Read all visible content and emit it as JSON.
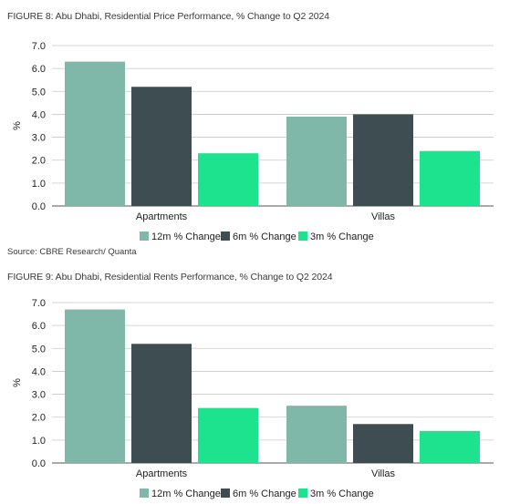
{
  "figures": [
    {
      "title": "FIGURE 8: Abu Dhabi, Residential Price Performance, % Change to Q2 2024",
      "source": "Source: CBRE Research/ Quanta"
    },
    {
      "title": "FIGURE 9: Abu Dhabi, Residential Rents Performance, % Change to Q2 2024",
      "source": ""
    }
  ],
  "colors": {
    "12m": "#7fb8a8",
    "6m": "#3e4d51",
    "3m": "#1de38f",
    "grid": "#c8c8c8",
    "axis": "#555555"
  },
  "chart_data": [
    {
      "type": "bar",
      "title": "FIGURE 8: Abu Dhabi, Residential Price Performance, % Change to Q2 2024",
      "categories": [
        "Apartments",
        "Villas"
      ],
      "series": [
        {
          "name": "12m % Change",
          "values": [
            6.3,
            3.9
          ]
        },
        {
          "name": "6m % Change",
          "values": [
            5.2,
            4.0
          ]
        },
        {
          "name": "3m % Change",
          "values": [
            2.3,
            2.4
          ]
        }
      ],
      "ylabel": "%",
      "ylim": [
        0,
        7
      ],
      "yticks": [
        "0.0",
        "1.0",
        "2.0",
        "3.0",
        "4.0",
        "5.0",
        "6.0",
        "7.0"
      ],
      "grid": true,
      "legend": "bottom"
    },
    {
      "type": "bar",
      "title": "FIGURE 9: Abu Dhabi, Residential Rents Performance, % Change to Q2 2024",
      "categories": [
        "Apartments",
        "Villas"
      ],
      "series": [
        {
          "name": "12m % Change",
          "values": [
            6.7,
            2.5
          ]
        },
        {
          "name": "6m % Change",
          "values": [
            5.2,
            1.7
          ]
        },
        {
          "name": "3m % Change",
          "values": [
            2.4,
            1.4
          ]
        }
      ],
      "ylabel": "%",
      "ylim": [
        0,
        7
      ],
      "yticks": [
        "0.0",
        "1.0",
        "2.0",
        "3.0",
        "4.0",
        "5.0",
        "6.0",
        "7.0"
      ],
      "grid": true,
      "legend": "bottom"
    }
  ]
}
